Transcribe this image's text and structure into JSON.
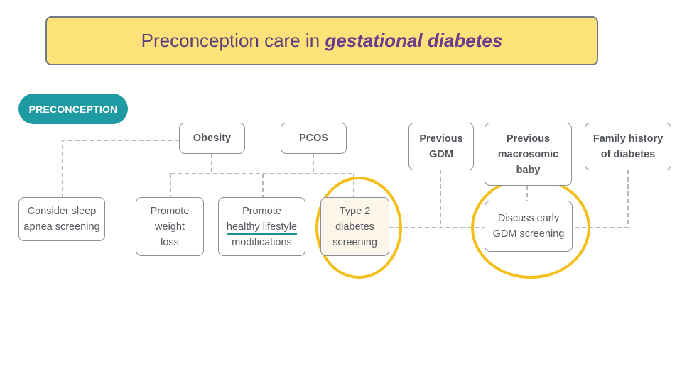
{
  "title": {
    "prefix": "Preconception care in ",
    "emphasis": "gestational diabetes"
  },
  "header_pill": "PRECONCEPTION",
  "conditions": {
    "obesity": "Obesity",
    "pcos": "PCOS",
    "previous_gdm": [
      "Previous",
      "GDM"
    ],
    "previous_macrosomic": [
      "Previous",
      "macrosomic",
      "baby"
    ],
    "family_history": [
      "Family history",
      "of diabetes"
    ]
  },
  "actions": {
    "sleep_apnea": [
      "Consider sleep",
      "apnea screening"
    ],
    "weight_loss": [
      "Promote",
      "weight",
      "loss"
    ],
    "lifestyle": [
      "Promote",
      "healthy lifestyle",
      "modifications"
    ],
    "type2_screening": [
      "Type 2",
      "diabetes",
      "screening"
    ],
    "gdm_screening": [
      "Discuss early",
      "GDM screening"
    ]
  },
  "colors": {
    "banner": "#fde27a",
    "pill": "#1e9aa3",
    "highlight_circle": "#f2c01c",
    "underline": "#1e8f9a"
  }
}
